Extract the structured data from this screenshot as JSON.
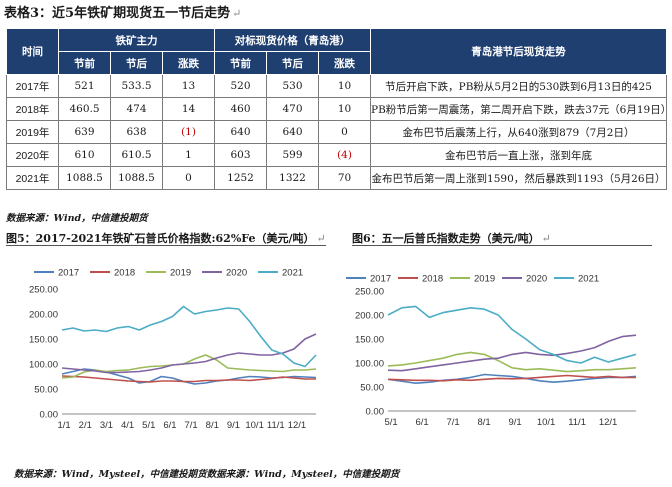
{
  "title": "表格3：近5年铁矿期现货五一节后走势",
  "table": {
    "col_time": "时间",
    "group_futures": "铁矿主力",
    "group_spot": "对标现货价格（青岛港）",
    "col_desc": "青岛港节后现货走势",
    "sub_before": "节前",
    "sub_after": "节后",
    "sub_change": "涨跌",
    "rows": [
      {
        "year": "2017年",
        "f_before": "521",
        "f_after": "533.5",
        "f_chg": "13",
        "f_neg": false,
        "s_before": "520",
        "s_after": "530",
        "s_chg": "10",
        "s_neg": false,
        "desc": "节后开启下跌，PB粉从5月2日的530跌到6月13日的425"
      },
      {
        "year": "2018年",
        "f_before": "460.5",
        "f_after": "474",
        "f_chg": "14",
        "f_neg": false,
        "s_before": "460",
        "s_after": "470",
        "s_chg": "10",
        "s_neg": false,
        "desc": "PB粉节后第一周震荡，第二周开启下跌，跌去37元（6月19日）"
      },
      {
        "year": "2019年",
        "f_before": "639",
        "f_after": "638",
        "f_chg": "(1)",
        "f_neg": true,
        "s_before": "640",
        "s_after": "640",
        "s_chg": "0",
        "s_neg": false,
        "desc": "金布巴节后震荡上行，从640涨到879（7月2日）"
      },
      {
        "year": "2020年",
        "f_before": "610",
        "f_after": "610.5",
        "f_chg": "1",
        "f_neg": false,
        "s_before": "603",
        "s_after": "599",
        "s_chg": "(4)",
        "s_neg": true,
        "desc": "金布巴节后一直上涨，涨到年底"
      },
      {
        "year": "2021年",
        "f_before": "1088.5",
        "f_after": "1088.5",
        "f_chg": "0",
        "f_neg": false,
        "s_before": "1252",
        "s_after": "1322",
        "s_chg": "70",
        "s_neg": false,
        "desc": "金布巴节后第一周上涨到1590，然后暴跌到1193（5月26日）"
      }
    ]
  },
  "source_note": "数据来源：Wind，中信建投期货",
  "fig5_title": "图5：2017-2021年铁矿石普氏价格指数:62%Fe（美元/吨）",
  "fig6_title": "图6：五一后普氏指数走势（美元/吨）",
  "footer": "数据来源：Wind，Mysteel，中信建投期货数据来源：Wind，Mysteel，中信建投期货",
  "colors": {
    "header_bg": "#1f3f70",
    "negative": "#c00000"
  },
  "chart_data": [
    {
      "type": "line",
      "x_tick_labels": [
        "1/1",
        "2/1",
        "3/1",
        "4/1",
        "5/1",
        "6/1",
        "7/1",
        "8/1",
        "9/1",
        "10/1",
        "11/1",
        "12/1"
      ],
      "ylim": [
        0,
        250
      ],
      "y_ticks": [
        0,
        50,
        100,
        150,
        200,
        250
      ],
      "y_tick_labels": [
        "0.00",
        "50.00",
        "100.00",
        "150.00",
        "200.00",
        "250.00"
      ],
      "legend_position": "top",
      "grid": false,
      "series": [
        {
          "name": "2017",
          "color": "#4f81bd",
          "values": [
            80,
            85,
            90,
            88,
            84,
            78,
            72,
            62,
            65,
            75,
            72,
            65,
            60,
            62,
            66,
            68,
            72,
            75,
            74,
            72,
            73,
            75,
            74,
            73
          ]
        },
        {
          "name": "2018",
          "color": "#c0504d",
          "values": [
            76,
            75,
            74,
            72,
            70,
            68,
            66,
            65,
            64,
            66,
            66,
            65,
            65,
            67,
            67,
            68,
            68,
            67,
            69,
            71,
            74,
            72,
            70,
            70
          ]
        },
        {
          "name": "2019",
          "color": "#9bbb59",
          "values": [
            72,
            74,
            84,
            88,
            85,
            87,
            88,
            92,
            95,
            96,
            98,
            100,
            110,
            118,
            108,
            92,
            90,
            88,
            87,
            86,
            85,
            88,
            88,
            90
          ]
        },
        {
          "name": "2020",
          "color": "#8064a2",
          "values": [
            92,
            90,
            88,
            86,
            83,
            83,
            84,
            85,
            88,
            92,
            98,
            100,
            102,
            105,
            112,
            118,
            122,
            120,
            118,
            118,
            122,
            130,
            150,
            160
          ]
        },
        {
          "name": "2021",
          "color": "#4bacc6",
          "values": [
            168,
            172,
            166,
            168,
            165,
            172,
            175,
            168,
            178,
            185,
            195,
            215,
            200,
            205,
            208,
            212,
            210,
            185,
            155,
            128,
            120,
            102,
            95,
            118
          ]
        }
      ]
    },
    {
      "type": "line",
      "x_tick_labels": [
        "5/1",
        "6/1",
        "7/1",
        "8/1",
        "9/1",
        "10/1",
        "11/1",
        "12/1"
      ],
      "ylim": [
        0,
        250
      ],
      "y_ticks": [
        0,
        50,
        100,
        150,
        200,
        250
      ],
      "y_tick_labels": [
        "0.00",
        "50.00",
        "100.00",
        "150.00",
        "200.00",
        "250.00"
      ],
      "legend_position": "top",
      "grid": false,
      "series": [
        {
          "name": "2017",
          "color": "#4f81bd",
          "values": [
            66,
            62,
            58,
            60,
            64,
            66,
            70,
            76,
            74,
            72,
            68,
            63,
            60,
            62,
            65,
            68,
            70,
            70,
            72
          ]
        },
        {
          "name": "2018",
          "color": "#c0504d",
          "values": [
            66,
            65,
            64,
            64,
            63,
            65,
            64,
            66,
            68,
            67,
            68,
            70,
            72,
            74,
            72,
            70,
            72,
            70,
            70
          ]
        },
        {
          "name": "2019",
          "color": "#9bbb59",
          "values": [
            94,
            96,
            100,
            105,
            110,
            118,
            122,
            118,
            105,
            90,
            86,
            88,
            85,
            82,
            84,
            86,
            86,
            88,
            90
          ]
        },
        {
          "name": "2020",
          "color": "#8064a2",
          "values": [
            85,
            84,
            88,
            92,
            96,
            100,
            104,
            108,
            110,
            118,
            122,
            118,
            116,
            120,
            125,
            132,
            145,
            155,
            158
          ]
        },
        {
          "name": "2021",
          "color": "#4bacc6",
          "values": [
            200,
            215,
            218,
            195,
            205,
            210,
            215,
            212,
            200,
            170,
            150,
            128,
            118,
            105,
            100,
            112,
            102,
            110,
            118
          ]
        }
      ]
    }
  ]
}
